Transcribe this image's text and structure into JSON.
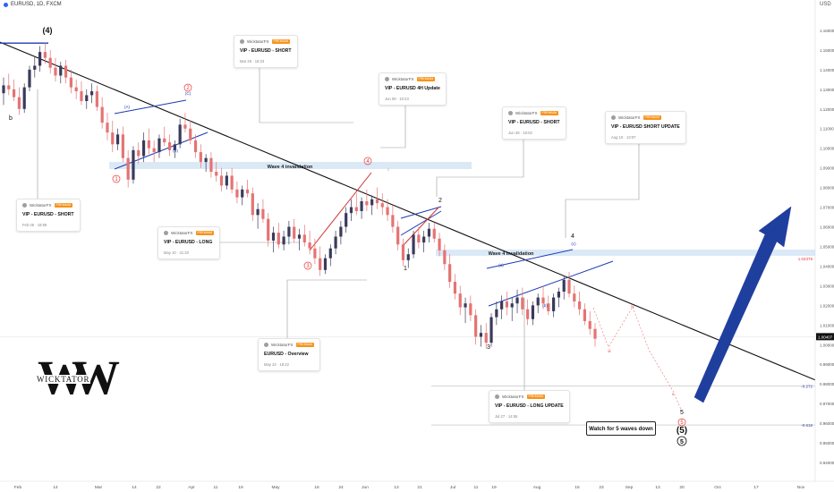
{
  "header": {
    "symbol": "EURUSD, 1D, FXCM",
    "unit": "USD"
  },
  "chart_data": {
    "type": "candlestick",
    "title": "EURUSD, 1D, FXCM",
    "ylabel": "USD",
    "ylim": [
      0.935,
      1.17
    ],
    "y_ticks": [
      1.16,
      1.15,
      1.14,
      1.13,
      1.12,
      1.11,
      1.1,
      1.09,
      1.08,
      1.07,
      1.06,
      1.05,
      1.04,
      1.03,
      1.02,
      1.01,
      1.0,
      0.99,
      0.98,
      0.97,
      0.96,
      0.95,
      0.94
    ],
    "y_tick_labels": [
      "1.16000",
      "1.15000",
      "1.14000",
      "1.13000",
      "1.12000",
      "1.11000",
      "1.10000",
      "1.09000",
      "1.08000",
      "1.07000",
      "1.06000",
      "1.05000",
      "1.04000",
      "1.03000",
      "1.02000",
      "1.01000",
      "1.00000",
      "0.99000",
      "0.98000",
      "0.97000",
      "0.96000",
      "0.95000",
      "0.94000"
    ],
    "x_ticks": [
      "Feb",
      "14",
      "Mar",
      "14",
      "22",
      "Apr",
      "11",
      "19",
      "May",
      "16",
      "24",
      "Jun",
      "13",
      "21",
      "Jul",
      "11",
      "19",
      "Aug",
      "15",
      "23",
      "Sep",
      "13",
      "20",
      "Oct",
      "17",
      "Nov"
    ],
    "price_labels": [
      {
        "value": 1.04378,
        "label": "1.04378",
        "color": "#e53935"
      },
      {
        "value": 1.00407,
        "label": "1.00407",
        "color": "#111111"
      },
      {
        "value": 0.9789,
        "label": "-0.272",
        "color": "#3949ab"
      },
      {
        "value": 0.9591,
        "label": "-0.618",
        "color": "#3949ab"
      }
    ],
    "zone_label": "Wave 4 invalidation",
    "zone_label_2": "Wave 4 Invalidation",
    "wave_labels": [
      "(4)",
      "b",
      "(A)",
      "(B)",
      "(C)",
      "1",
      "2",
      "3",
      "4",
      "(5)",
      "5",
      "i",
      "ii",
      "iii",
      "iv",
      "v",
      "(a)",
      "(b)",
      "(c)"
    ],
    "circled_labels": [
      "1",
      "2",
      "3",
      "4",
      "5"
    ],
    "series": [
      {
        "name": "EURUSD",
        "values": [
          [
            1.128,
            1.136,
            1.122,
            1.132
          ],
          [
            1.132,
            1.138,
            1.127,
            1.13
          ],
          [
            1.13,
            1.135,
            1.124,
            1.126
          ],
          [
            1.126,
            1.131,
            1.117,
            1.12
          ],
          [
            1.12,
            1.133,
            1.118,
            1.131
          ],
          [
            1.131,
            1.142,
            1.129,
            1.14
          ],
          [
            1.14,
            1.147,
            1.136,
            1.142
          ],
          [
            1.142,
            1.152,
            1.139,
            1.149
          ],
          [
            1.149,
            1.154,
            1.143,
            1.146
          ],
          [
            1.146,
            1.15,
            1.138,
            1.141
          ],
          [
            1.141,
            1.146,
            1.134,
            1.137
          ],
          [
            1.137,
            1.144,
            1.133,
            1.142
          ],
          [
            1.142,
            1.145,
            1.133,
            1.136
          ],
          [
            1.136,
            1.14,
            1.128,
            1.131
          ],
          [
            1.131,
            1.135,
            1.125,
            1.129
          ],
          [
            1.129,
            1.134,
            1.122,
            1.124
          ],
          [
            1.124,
            1.13,
            1.12,
            1.127
          ],
          [
            1.127,
            1.133,
            1.123,
            1.129
          ],
          [
            1.129,
            1.132,
            1.119,
            1.121
          ],
          [
            1.121,
            1.126,
            1.11,
            1.113
          ],
          [
            1.113,
            1.118,
            1.104,
            1.108
          ],
          [
            1.108,
            1.114,
            1.098,
            1.102
          ],
          [
            1.102,
            1.11,
            1.099,
            1.107
          ],
          [
            1.107,
            1.111,
            1.093,
            1.095
          ],
          [
            1.095,
            1.099,
            1.08,
            1.084
          ],
          [
            1.084,
            1.101,
            1.082,
            1.099
          ],
          [
            1.099,
            1.103,
            1.092,
            1.096
          ],
          [
            1.096,
            1.108,
            1.093,
            1.104
          ],
          [
            1.104,
            1.11,
            1.097,
            1.1
          ],
          [
            1.1,
            1.104,
            1.093,
            1.098
          ],
          [
            1.098,
            1.107,
            1.095,
            1.105
          ],
          [
            1.105,
            1.111,
            1.101,
            1.103
          ],
          [
            1.103,
            1.107,
            1.096,
            1.099
          ],
          [
            1.099,
            1.104,
            1.095,
            1.102
          ],
          [
            1.102,
            1.115,
            1.1,
            1.112
          ],
          [
            1.112,
            1.118,
            1.108,
            1.11
          ],
          [
            1.11,
            1.114,
            1.102,
            1.104
          ],
          [
            1.104,
            1.107,
            1.095,
            1.098
          ],
          [
            1.098,
            1.102,
            1.09,
            1.093
          ],
          [
            1.093,
            1.097,
            1.088,
            1.095
          ],
          [
            1.095,
            1.098,
            1.085,
            1.088
          ],
          [
            1.088,
            1.093,
            1.083,
            1.086
          ],
          [
            1.086,
            1.09,
            1.078,
            1.081
          ],
          [
            1.081,
            1.088,
            1.079,
            1.086
          ],
          [
            1.086,
            1.09,
            1.077,
            1.079
          ],
          [
            1.079,
            1.083,
            1.072,
            1.075
          ],
          [
            1.075,
            1.081,
            1.071,
            1.079
          ],
          [
            1.079,
            1.084,
            1.075,
            1.077
          ],
          [
            1.077,
            1.08,
            1.063,
            1.066
          ],
          [
            1.066,
            1.072,
            1.059,
            1.069
          ],
          [
            1.069,
            1.074,
            1.062,
            1.064
          ],
          [
            1.064,
            1.067,
            1.05,
            1.053
          ],
          [
            1.053,
            1.06,
            1.047,
            1.057
          ],
          [
            1.057,
            1.062,
            1.049,
            1.051
          ],
          [
            1.051,
            1.058,
            1.048,
            1.055
          ],
          [
            1.055,
            1.063,
            1.051,
            1.06
          ],
          [
            1.06,
            1.064,
            1.052,
            1.054
          ],
          [
            1.054,
            1.059,
            1.048,
            1.056
          ],
          [
            1.056,
            1.061,
            1.05,
            1.052
          ],
          [
            1.052,
            1.058,
            1.046,
            1.049
          ],
          [
            1.049,
            1.054,
            1.041,
            1.044
          ],
          [
            1.044,
            1.05,
            1.035,
            1.038
          ],
          [
            1.038,
            1.046,
            1.036,
            1.044
          ],
          [
            1.044,
            1.051,
            1.04,
            1.049
          ],
          [
            1.049,
            1.058,
            1.046,
            1.055
          ],
          [
            1.055,
            1.063,
            1.051,
            1.06
          ],
          [
            1.06,
            1.07,
            1.057,
            1.067
          ],
          [
            1.067,
            1.074,
            1.063,
            1.07
          ],
          [
            1.07,
            1.077,
            1.066,
            1.068
          ],
          [
            1.068,
            1.075,
            1.064,
            1.073
          ],
          [
            1.073,
            1.079,
            1.068,
            1.071
          ],
          [
            1.071,
            1.076,
            1.066,
            1.074
          ],
          [
            1.074,
            1.08,
            1.069,
            1.072
          ],
          [
            1.072,
            1.077,
            1.066,
            1.07
          ],
          [
            1.07,
            1.074,
            1.063,
            1.066
          ],
          [
            1.066,
            1.071,
            1.057,
            1.06
          ],
          [
            1.06,
            1.063,
            1.048,
            1.051
          ],
          [
            1.051,
            1.054,
            1.04,
            1.043
          ],
          [
            1.043,
            1.049,
            1.039,
            1.046
          ],
          [
            1.046,
            1.058,
            1.044,
            1.056
          ],
          [
            1.056,
            1.06,
            1.049,
            1.052
          ],
          [
            1.052,
            1.058,
            1.047,
            1.055
          ],
          [
            1.055,
            1.062,
            1.052,
            1.059
          ],
          [
            1.059,
            1.062,
            1.052,
            1.054
          ],
          [
            1.054,
            1.057,
            1.045,
            1.048
          ],
          [
            1.048,
            1.051,
            1.038,
            1.041
          ],
          [
            1.041,
            1.046,
            1.029,
            1.032
          ],
          [
            1.032,
            1.036,
            1.023,
            1.026
          ],
          [
            1.026,
            1.03,
            1.015,
            1.019
          ],
          [
            1.019,
            1.024,
            1.011,
            1.021
          ],
          [
            1.021,
            1.025,
            1.012,
            1.015
          ],
          [
            1.015,
            1.018,
            1.0,
            1.004
          ],
          [
            1.004,
            1.01,
            0.999,
            1.006
          ],
          [
            1.006,
            1.011,
            0.998,
            1.001
          ],
          [
            1.001,
            1.016,
            0.999,
            1.014
          ],
          [
            1.014,
            1.022,
            1.01,
            1.018
          ],
          [
            1.018,
            1.025,
            1.013,
            1.022
          ],
          [
            1.022,
            1.027,
            1.015,
            1.019
          ],
          [
            1.019,
            1.024,
            1.012,
            1.021
          ],
          [
            1.021,
            1.028,
            1.016,
            1.024
          ],
          [
            1.024,
            1.029,
            1.015,
            1.018
          ],
          [
            1.018,
            1.023,
            1.01,
            1.013
          ],
          [
            1.013,
            1.022,
            1.01,
            1.02
          ],
          [
            1.02,
            1.026,
            1.016,
            1.024
          ],
          [
            1.024,
            1.03,
            1.018,
            1.021
          ],
          [
            1.021,
            1.025,
            1.015,
            1.017
          ],
          [
            1.017,
            1.026,
            1.014,
            1.024
          ],
          [
            1.024,
            1.029,
            1.019,
            1.027
          ],
          [
            1.027,
            1.035,
            1.023,
            1.033
          ],
          [
            1.033,
            1.037,
            1.024,
            1.026
          ],
          [
            1.026,
            1.03,
            1.019,
            1.022
          ],
          [
            1.022,
            1.027,
            1.015,
            1.018
          ],
          [
            1.018,
            1.021,
            1.01,
            1.012
          ],
          [
            1.012,
            1.017,
            1.005,
            1.008
          ],
          [
            1.008,
            1.011,
            0.999,
            1.003
          ]
        ]
      }
    ],
    "grid": false,
    "legend": "none"
  },
  "annotations": [
    {
      "user": "WicktatorFX",
      "badge": "PREMIUM",
      "title": "VIP - EURUSD - SHORT",
      "date": "Feb 06 · 18:59"
    },
    {
      "user": "WicktatorFX",
      "badge": "PREMIUM",
      "title": "VIP - EURUSD - SHORT",
      "date": "Mar 26 · 16:23"
    },
    {
      "user": "WicktatorFX",
      "badge": "PREMIUM",
      "title": "VIP - EURUSD - LONG",
      "date": "May 10 · 21:20"
    },
    {
      "user": "WicktatorFX",
      "badge": "PREMIUM",
      "title": "EURUSD - Overview",
      "date": "May 22 · 18:22"
    },
    {
      "user": "WicktatorFX",
      "badge": "PREMIUM",
      "title": "VIP - EURUSD 4H Update",
      "date": "Jun 08 · 10:23"
    },
    {
      "user": "WicktatorFX",
      "badge": "PREMIUM",
      "title": "VIP - EURUSD - SHORT",
      "date": "Jun 28 · 18:02"
    },
    {
      "user": "WicktatorFX",
      "badge": "PREMIUM",
      "title": "VIP - EURUSD SHORT UPDATE",
      "date": "Aug 10 · 13:07"
    },
    {
      "user": "WicktatorFX",
      "badge": "PREMIUM",
      "title": "VIP - EURUSD - LONG UPDATE",
      "date": "Jul 27 · 14:55"
    }
  ],
  "callout": "Watch for 5 waves down",
  "logo": {
    "text": "WICKTATOR"
  },
  "colors": {
    "up": "#3a3a5c",
    "down": "#e57373",
    "zone": "#dbe9f7",
    "trend": "#111111",
    "channel": "#1e3bb3",
    "arrow": "#1f3f9f"
  }
}
